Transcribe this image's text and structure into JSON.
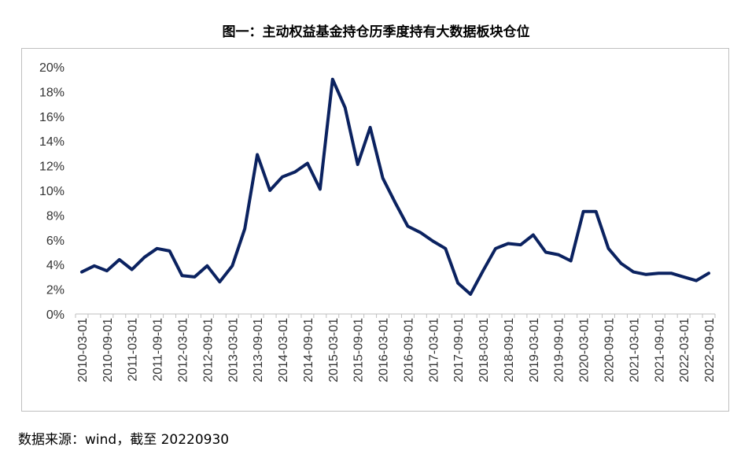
{
  "title": "图一：主动权益基金持仓历季度持有大数据板块仓位",
  "source": "数据来源：wind，截至 20220930",
  "colors": {
    "line": "#0b2260",
    "axis": "#bfbfbf",
    "frame": "#bfbfbf"
  },
  "chart_data": {
    "type": "line",
    "title": "图一：主动权益基金持仓历季度持有大数据板块仓位",
    "xlabel": "",
    "ylabel": "",
    "ylim": [
      0,
      20
    ],
    "y_ticks": [
      "0%",
      "2%",
      "4%",
      "6%",
      "8%",
      "10%",
      "12%",
      "14%",
      "16%",
      "18%",
      "20%"
    ],
    "y_tick_values": [
      0,
      2,
      4,
      6,
      8,
      10,
      12,
      14,
      16,
      18,
      20
    ],
    "x_tick_labels": [
      "2010-03-01",
      "2010-09-01",
      "2011-03-01",
      "2011-09-01",
      "2012-03-01",
      "2012-09-01",
      "2013-03-01",
      "2013-09-01",
      "2014-03-01",
      "2014-09-01",
      "2015-03-01",
      "2015-09-01",
      "2016-03-01",
      "2016-09-01",
      "2017-03-01",
      "2017-09-01",
      "2018-03-01",
      "2018-09-01",
      "2019-03-01",
      "2019-09-01",
      "2020-03-01",
      "2020-09-01",
      "2021-03-01",
      "2021-09-01",
      "2022-03-01",
      "2022-09-01"
    ],
    "grid": false,
    "legend": "none",
    "x": [
      "2010-03",
      "2010-06",
      "2010-09",
      "2010-12",
      "2011-03",
      "2011-06",
      "2011-09",
      "2011-12",
      "2012-03",
      "2012-06",
      "2012-09",
      "2012-12",
      "2013-03",
      "2013-06",
      "2013-09",
      "2013-12",
      "2014-03",
      "2014-06",
      "2014-09",
      "2014-12",
      "2015-03",
      "2015-06",
      "2015-09",
      "2015-12",
      "2016-03",
      "2016-06",
      "2016-09",
      "2016-12",
      "2017-03",
      "2017-06",
      "2017-09",
      "2017-12",
      "2018-03",
      "2018-06",
      "2018-09",
      "2018-12",
      "2019-03",
      "2019-06",
      "2019-09",
      "2019-12",
      "2020-03",
      "2020-06",
      "2020-09",
      "2020-12",
      "2021-03",
      "2021-06",
      "2021-09",
      "2021-12",
      "2022-03",
      "2022-06",
      "2022-09"
    ],
    "series": [
      {
        "values": [
          3.4,
          3.9,
          3.5,
          4.4,
          3.6,
          4.6,
          5.3,
          5.1,
          3.1,
          3.0,
          3.9,
          2.6,
          3.9,
          6.9,
          12.9,
          10.0,
          11.1,
          11.5,
          12.2,
          10.1,
          19.0,
          16.7,
          12.1,
          15.1,
          11.0,
          9.0,
          7.1,
          6.6,
          5.9,
          5.3,
          2.5,
          1.6,
          3.5,
          5.3,
          5.7,
          5.6,
          6.4,
          5.0,
          4.8,
          4.3,
          8.3,
          8.3,
          5.3,
          4.1,
          3.4,
          3.2,
          3.3,
          3.3,
          3.0,
          2.7,
          3.3
        ]
      }
    ]
  }
}
